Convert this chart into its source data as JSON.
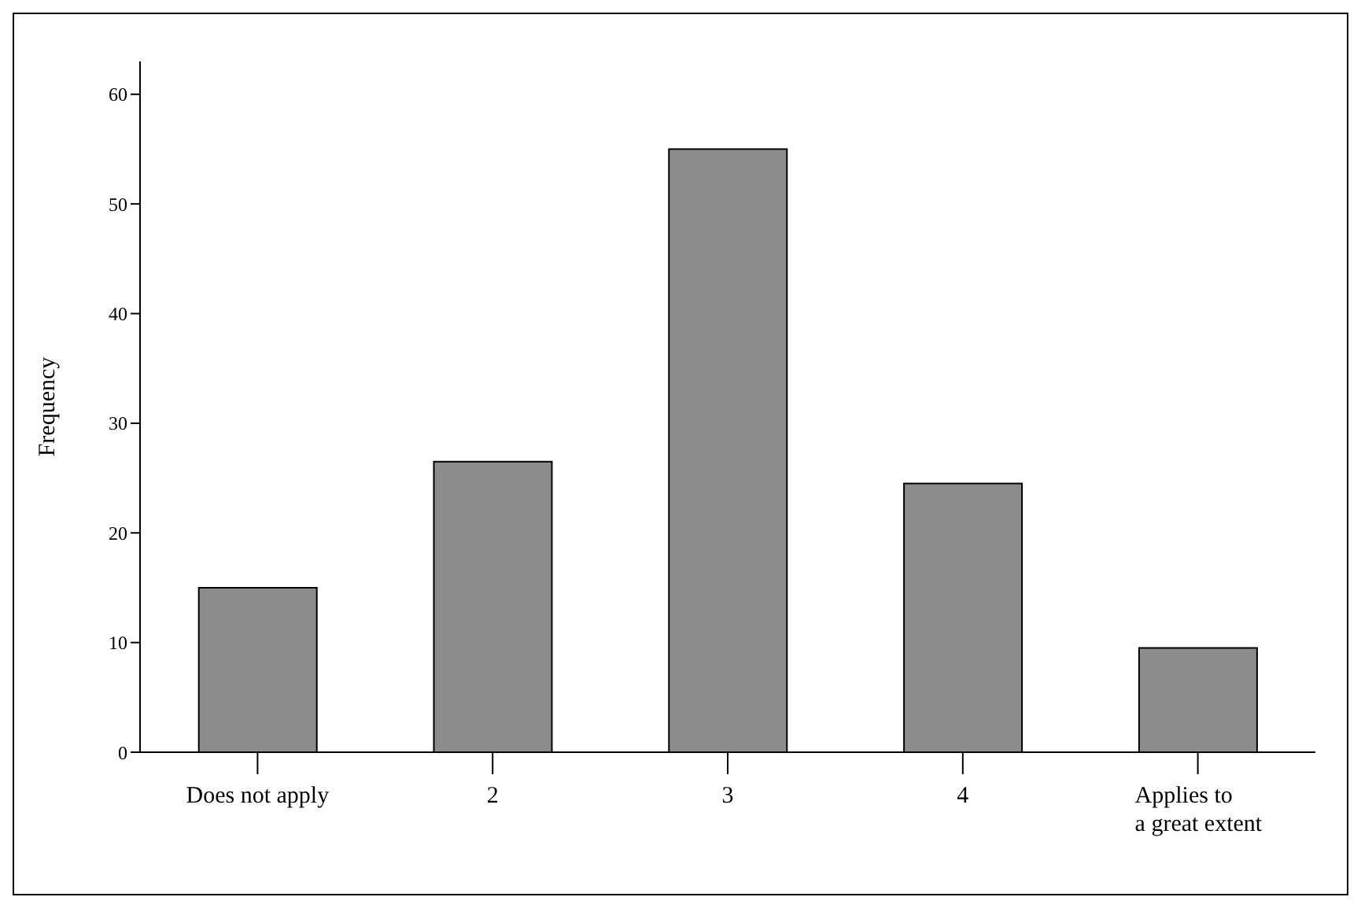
{
  "chart_data": {
    "type": "bar",
    "ylabel": "Frequency",
    "categories": [
      "Does not apply",
      "2",
      "3",
      "4",
      "Applies to\na great extent"
    ],
    "values": [
      15,
      26.5,
      55,
      24.5,
      9.5
    ],
    "color": "#8c8c8c",
    "ylim": [
      0,
      63
    ],
    "yticks": [
      0,
      10,
      20,
      30,
      40,
      50,
      60
    ],
    "grid": false,
    "legend": false
  }
}
